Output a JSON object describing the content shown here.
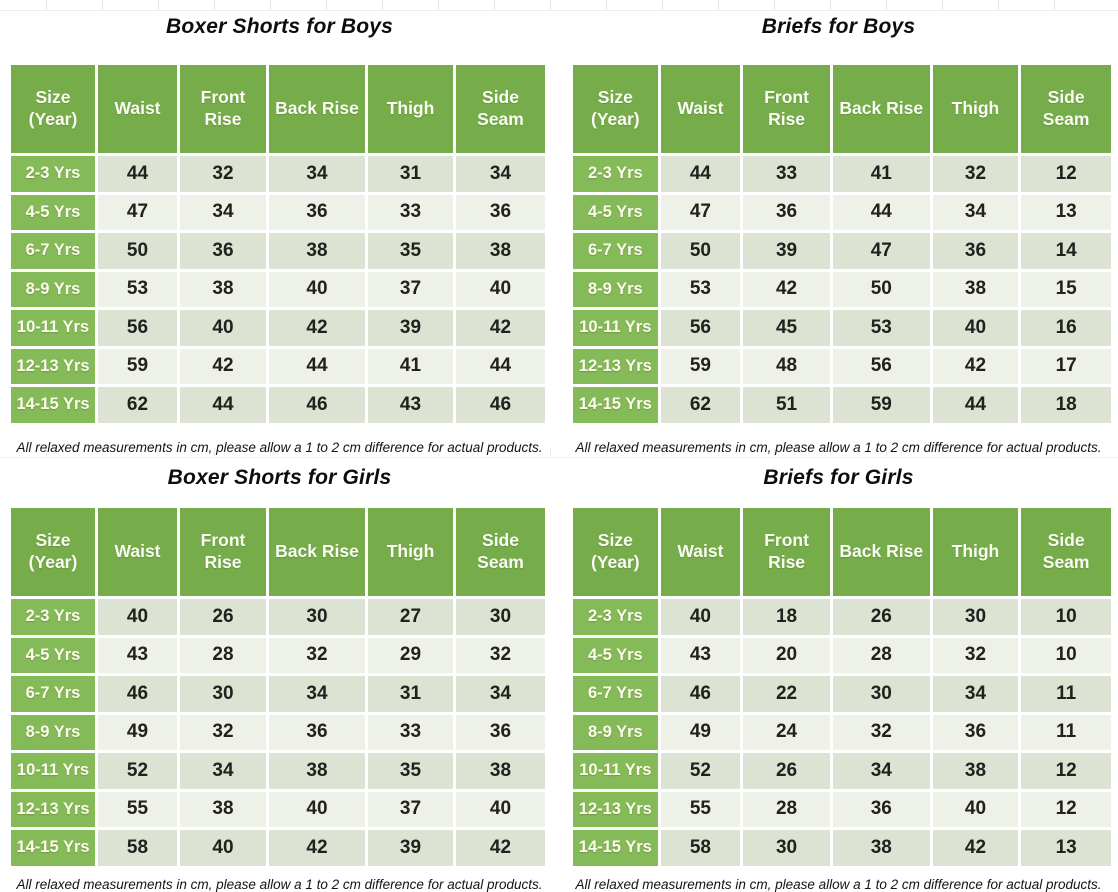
{
  "note": "All relaxed measurements in cm, please allow a 1 to 2 cm difference for actual products.",
  "colors": {
    "header_green": "#76ad4a",
    "row_label_green": "#84ba58",
    "row_odd_bg": "#dce3d3",
    "row_even_bg": "#eef1e8",
    "header_text": "#f9fbf4",
    "data_text": "#21211e"
  },
  "chart_data": [
    {
      "type": "table",
      "title": "Boxer Shorts for Boys",
      "columns": [
        "Size\n(Year)",
        "Waist",
        "Front\nRise",
        "Back Rise",
        "Thigh",
        "Side\nSeam"
      ],
      "rows": [
        [
          "2-3 Yrs",
          44,
          32,
          34,
          31,
          34
        ],
        [
          "4-5 Yrs",
          47,
          34,
          36,
          33,
          36
        ],
        [
          "6-7 Yrs",
          50,
          36,
          38,
          35,
          38
        ],
        [
          "8-9 Yrs",
          53,
          38,
          40,
          37,
          40
        ],
        [
          "10-11 Yrs",
          56,
          40,
          42,
          39,
          42
        ],
        [
          "12-13 Yrs",
          59,
          42,
          44,
          41,
          44
        ],
        [
          "14-15 Yrs",
          62,
          44,
          46,
          43,
          46
        ]
      ]
    },
    {
      "type": "table",
      "title": "Briefs for Boys",
      "columns": [
        "Size\n(Year)",
        "Waist",
        "Front\nRise",
        "Back Rise",
        "Thigh",
        "Side\nSeam"
      ],
      "rows": [
        [
          "2-3 Yrs",
          44,
          33,
          41,
          32,
          12
        ],
        [
          "4-5 Yrs",
          47,
          36,
          44,
          34,
          13
        ],
        [
          "6-7 Yrs",
          50,
          39,
          47,
          36,
          14
        ],
        [
          "8-9 Yrs",
          53,
          42,
          50,
          38,
          15
        ],
        [
          "10-11 Yrs",
          56,
          45,
          53,
          40,
          16
        ],
        [
          "12-13 Yrs",
          59,
          48,
          56,
          42,
          17
        ],
        [
          "14-15 Yrs",
          62,
          51,
          59,
          44,
          18
        ]
      ]
    },
    {
      "type": "table",
      "title": "Boxer Shorts for Girls",
      "columns": [
        "Size\n(Year)",
        "Waist",
        "Front\nRise",
        "Back Rise",
        "Thigh",
        "Side\nSeam"
      ],
      "rows": [
        [
          "2-3 Yrs",
          40,
          26,
          30,
          27,
          30
        ],
        [
          "4-5 Yrs",
          43,
          28,
          32,
          29,
          32
        ],
        [
          "6-7 Yrs",
          46,
          30,
          34,
          31,
          34
        ],
        [
          "8-9 Yrs",
          49,
          32,
          36,
          33,
          36
        ],
        [
          "10-11 Yrs",
          52,
          34,
          38,
          35,
          38
        ],
        [
          "12-13 Yrs",
          55,
          38,
          40,
          37,
          40
        ],
        [
          "14-15 Yrs",
          58,
          40,
          42,
          39,
          42
        ]
      ]
    },
    {
      "type": "table",
      "title": "Briefs for Girls",
      "columns": [
        "Size\n(Year)",
        "Waist",
        "Front\nRise",
        "Back Rise",
        "Thigh",
        "Side\nSeam"
      ],
      "rows": [
        [
          "2-3 Yrs",
          40,
          18,
          26,
          30,
          10
        ],
        [
          "4-5 Yrs",
          43,
          20,
          28,
          32,
          10
        ],
        [
          "6-7 Yrs",
          46,
          22,
          30,
          34,
          11
        ],
        [
          "8-9 Yrs",
          49,
          24,
          32,
          36,
          11
        ],
        [
          "10-11 Yrs",
          52,
          26,
          34,
          38,
          12
        ],
        [
          "12-13 Yrs",
          55,
          28,
          36,
          40,
          12
        ],
        [
          "14-15 Yrs",
          58,
          30,
          38,
          42,
          13
        ]
      ]
    }
  ]
}
